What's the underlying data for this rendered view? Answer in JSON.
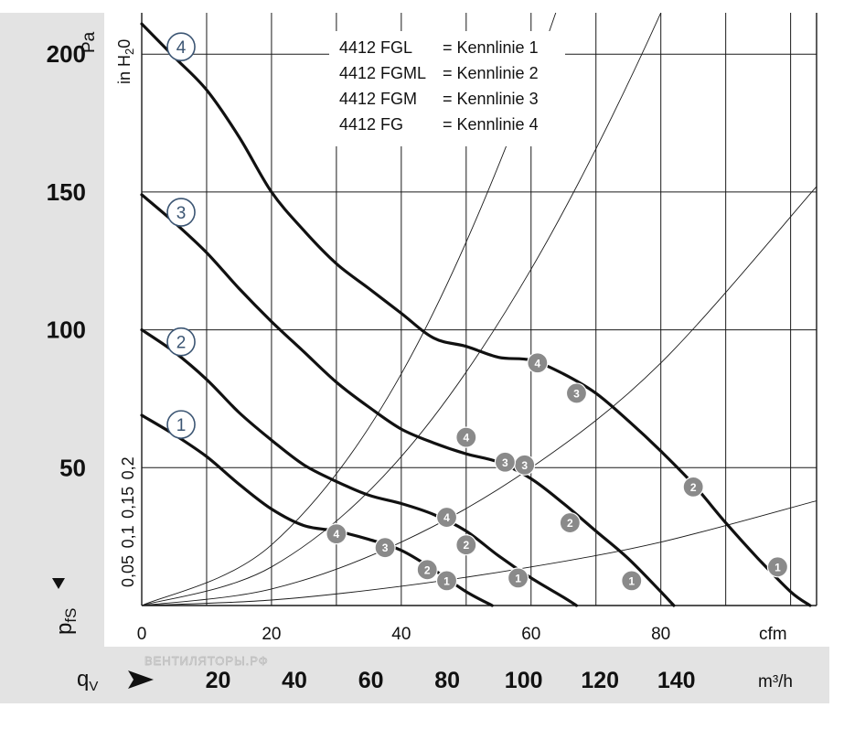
{
  "chart_data": {
    "type": "line",
    "title": "",
    "x_axis": {
      "unit": "cfm",
      "ticks": [
        "0",
        "20",
        "40",
        "60",
        "80"
      ],
      "range": [
        0,
        104
      ]
    },
    "x_axis_secondary": {
      "label": "qV",
      "unit": "m³/h",
      "ticks": [
        "20",
        "40",
        "60",
        "80",
        "100",
        "120",
        "140"
      ]
    },
    "y_axis": {
      "label": "pfs",
      "unit": "Pa",
      "ticks": [
        "50",
        "100",
        "150",
        "200"
      ],
      "range": [
        0,
        215
      ]
    },
    "y_axis_secondary": {
      "unit": "in H2O",
      "ticks": [
        "0,05",
        "0,1",
        "0,15",
        "0,2"
      ]
    },
    "legend": [
      {
        "model": "4412 FGL",
        "curve": "= Kennlinie 1"
      },
      {
        "model": "4412 FGML",
        "curve": "= Kennlinie 2"
      },
      {
        "model": "4412 FGM",
        "curve": "= Kennlinie 3"
      },
      {
        "model": "4412 FG",
        "curve": "= Kennlinie 4"
      }
    ],
    "series": [
      {
        "name": "1",
        "x": [
          0,
          5,
          10,
          15,
          20,
          25,
          30,
          35,
          40,
          45,
          50,
          54
        ],
        "y": [
          69,
          62,
          54,
          44,
          35,
          29,
          27,
          24,
          20,
          13,
          5,
          0
        ],
        "operating_points": [
          {
            "label": "4",
            "x": 30,
            "y": 26
          },
          {
            "label": "3",
            "x": 37.5,
            "y": 21
          },
          {
            "label": "2",
            "x": 44,
            "y": 13
          },
          {
            "label": "1",
            "x": 47,
            "y": 9
          }
        ]
      },
      {
        "name": "2",
        "x": [
          0,
          5,
          10,
          15,
          20,
          25,
          30,
          35,
          40,
          45,
          50,
          55,
          60,
          65,
          67
        ],
        "y": [
          100,
          92,
          82,
          70,
          60,
          51,
          45,
          40,
          37,
          33,
          27,
          18,
          10,
          3,
          0
        ],
        "operating_points": [
          {
            "label": "4",
            "x": 50,
            "y": 61
          },
          {
            "label": "3",
            "x": 59,
            "y": 51
          },
          {
            "label": "2",
            "x": 66,
            "y": 30
          },
          {
            "label": "1",
            "x": 75.5,
            "y": 9
          }
        ]
      },
      {
        "name": "3",
        "x": [
          0,
          5,
          10,
          15,
          20,
          25,
          30,
          35,
          40,
          45,
          50,
          55,
          60,
          65,
          70,
          75,
          80,
          82
        ],
        "y": [
          149,
          139,
          128,
          115,
          103,
          92,
          81,
          72,
          64,
          59,
          55,
          52,
          46,
          37,
          27,
          17,
          5,
          0
        ],
        "operating_points": [
          {
            "label": "4",
            "x": 47,
            "y": 32
          },
          {
            "label": "3",
            "x": 56,
            "y": 52
          },
          {
            "label": "2",
            "x": 50,
            "y": 22
          },
          {
            "label": "1",
            "x": 58,
            "y": 10
          }
        ]
      },
      {
        "name": "4",
        "x": [
          0,
          5,
          10,
          15,
          20,
          25,
          30,
          35,
          40,
          45,
          50,
          55,
          60,
          65,
          70,
          75,
          80,
          85,
          90,
          95,
          100,
          103
        ],
        "y": [
          211,
          199,
          187,
          170,
          150,
          136,
          124,
          115,
          106,
          97,
          94,
          90,
          89,
          84,
          77,
          67,
          56,
          44,
          30,
          17,
          5,
          0
        ],
        "operating_points": [
          {
            "label": "4",
            "x": 61,
            "y": 88
          },
          {
            "label": "3",
            "x": 67,
            "y": 77
          },
          {
            "label": "2",
            "x": 85,
            "y": 43
          },
          {
            "label": "1",
            "x": 98,
            "y": 14
          }
        ]
      }
    ],
    "system_curves": [
      {
        "x": [
          0,
          20,
          40,
          60,
          80,
          104
        ],
        "y": [
          0,
          2,
          7,
          14,
          23,
          38
        ]
      },
      {
        "x": [
          0,
          20,
          40,
          60,
          80,
          104
        ],
        "y": [
          0,
          6,
          23,
          50,
          88,
          152
        ]
      },
      {
        "x": [
          0,
          20,
          40,
          60,
          80,
          96
        ],
        "y": [
          0,
          14,
          54,
          122,
          215,
          310
        ]
      },
      {
        "x": [
          0,
          20,
          40,
          60,
          80,
          90
        ],
        "y": [
          0,
          22,
          84,
          190,
          335,
          420
        ]
      }
    ]
  },
  "labels": {
    "pa_unit": "Pa",
    "inh2o_unit": "in H",
    "inh2o_sub": "2",
    "inh2o_tail": "0",
    "y_title": "p",
    "y_title_sub": "fS",
    "x_title": "q",
    "x_title_sub": "V",
    "cfm_unit": "cfm",
    "m3h_unit": "m³/h",
    "watermark": "ВЕНТИЛЯТОРЫ.РФ"
  },
  "colors": {
    "band": "#e3e3e3",
    "label_ring": "#3b5573",
    "marker": "#8a8a8a"
  }
}
